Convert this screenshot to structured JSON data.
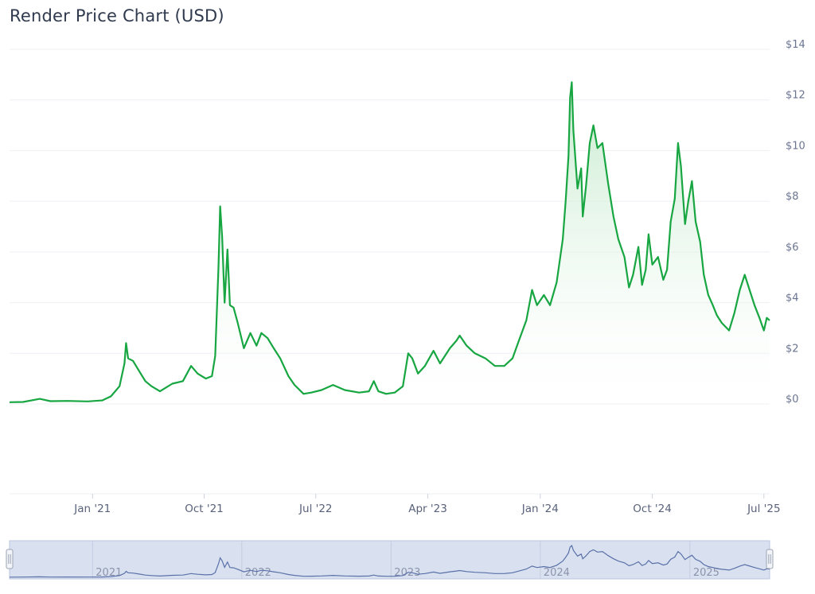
{
  "title": "Render Price Chart (USD)",
  "colors": {
    "line": "#17a641",
    "area_top": "#bfe8c7",
    "grid": "#edeff3",
    "navigator_fill": "#d9e1f1",
    "navigator_line": "#5a71a8",
    "navigator_border": "#b9c4dc"
  },
  "chart_data": {
    "type": "area",
    "title": "Render Price Chart (USD)",
    "xlabel": "",
    "ylabel": "",
    "ylim": [
      0,
      14
    ],
    "xlim": [
      "2020-06-12",
      "2025-07-15"
    ],
    "grid": true,
    "y_ticks": [
      "$0",
      "$2",
      "$4",
      "$6",
      "$8",
      "$10",
      "$12",
      "$14"
    ],
    "y_tick_values": [
      0,
      2,
      4,
      6,
      8,
      10,
      12,
      14
    ],
    "x_ticks": [
      {
        "date": "2021-01-01",
        "label": "Jan '21"
      },
      {
        "date": "2021-10-01",
        "label": "Oct '21"
      },
      {
        "date": "2022-07-01",
        "label": "Jul '22"
      },
      {
        "date": "2023-04-01",
        "label": "Apr '23"
      },
      {
        "date": "2024-01-01",
        "label": "Jan '24"
      },
      {
        "date": "2024-10-01",
        "label": "Oct '24"
      },
      {
        "date": "2025-07-01",
        "label": "Jul '25"
      }
    ],
    "navigator_ticks": [
      {
        "date": "2021-01-01",
        "label": "2021"
      },
      {
        "date": "2022-01-01",
        "label": "2022"
      },
      {
        "date": "2023-01-01",
        "label": "2023"
      },
      {
        "date": "2024-01-01",
        "label": "2024"
      },
      {
        "date": "2025-01-01",
        "label": "2025"
      }
    ],
    "series": [
      {
        "values": [
          [
            "2020-06-12",
            0.07
          ],
          [
            "2020-07-15",
            0.08
          ],
          [
            "2020-08-25",
            0.2
          ],
          [
            "2020-09-20",
            0.11
          ],
          [
            "2020-11-01",
            0.12
          ],
          [
            "2020-12-20",
            0.1
          ],
          [
            "2021-01-25",
            0.14
          ],
          [
            "2021-02-15",
            0.3
          ],
          [
            "2021-03-08",
            0.7
          ],
          [
            "2021-03-20",
            1.6
          ],
          [
            "2021-03-24",
            2.4
          ],
          [
            "2021-03-29",
            1.8
          ],
          [
            "2021-04-10",
            1.7
          ],
          [
            "2021-04-25",
            1.3
          ],
          [
            "2021-05-10",
            0.9
          ],
          [
            "2021-05-25",
            0.7
          ],
          [
            "2021-06-15",
            0.5
          ],
          [
            "2021-07-15",
            0.8
          ],
          [
            "2021-08-10",
            0.9
          ],
          [
            "2021-08-30",
            1.5
          ],
          [
            "2021-09-15",
            1.2
          ],
          [
            "2021-10-05",
            1.0
          ],
          [
            "2021-10-20",
            1.1
          ],
          [
            "2021-10-28",
            1.9
          ],
          [
            "2021-11-05",
            5.4
          ],
          [
            "2021-11-09",
            7.8
          ],
          [
            "2021-11-14",
            6.6
          ],
          [
            "2021-11-20",
            4.0
          ],
          [
            "2021-11-27",
            6.1
          ],
          [
            "2021-12-03",
            3.9
          ],
          [
            "2021-12-12",
            3.8
          ],
          [
            "2021-12-22",
            3.2
          ],
          [
            "2022-01-06",
            2.2
          ],
          [
            "2022-01-22",
            2.8
          ],
          [
            "2022-02-06",
            2.3
          ],
          [
            "2022-02-18",
            2.8
          ],
          [
            "2022-03-05",
            2.6
          ],
          [
            "2022-03-20",
            2.2
          ],
          [
            "2022-04-05",
            1.8
          ],
          [
            "2022-04-25",
            1.1
          ],
          [
            "2022-05-10",
            0.75
          ],
          [
            "2022-06-01",
            0.4
          ],
          [
            "2022-06-20",
            0.45
          ],
          [
            "2022-07-15",
            0.55
          ],
          [
            "2022-08-12",
            0.75
          ],
          [
            "2022-09-10",
            0.55
          ],
          [
            "2022-10-15",
            0.45
          ],
          [
            "2022-11-08",
            0.5
          ],
          [
            "2022-11-20",
            0.9
          ],
          [
            "2022-12-01",
            0.5
          ],
          [
            "2022-12-20",
            0.4
          ],
          [
            "2023-01-10",
            0.45
          ],
          [
            "2023-01-30",
            0.7
          ],
          [
            "2023-02-12",
            2.0
          ],
          [
            "2023-02-22",
            1.8
          ],
          [
            "2023-03-08",
            1.2
          ],
          [
            "2023-03-25",
            1.5
          ],
          [
            "2023-04-15",
            2.1
          ],
          [
            "2023-05-01",
            1.6
          ],
          [
            "2023-05-25",
            2.2
          ],
          [
            "2023-06-10",
            2.5
          ],
          [
            "2023-06-18",
            2.7
          ],
          [
            "2023-07-05",
            2.3
          ],
          [
            "2023-07-25",
            2.0
          ],
          [
            "2023-08-20",
            1.8
          ],
          [
            "2023-09-12",
            1.5
          ],
          [
            "2023-10-05",
            1.5
          ],
          [
            "2023-10-25",
            1.8
          ],
          [
            "2023-11-12",
            2.6
          ],
          [
            "2023-11-28",
            3.3
          ],
          [
            "2023-12-12",
            4.5
          ],
          [
            "2023-12-24",
            3.9
          ],
          [
            "2024-01-10",
            4.3
          ],
          [
            "2024-01-25",
            3.9
          ],
          [
            "2024-02-10",
            4.8
          ],
          [
            "2024-02-25",
            6.5
          ],
          [
            "2024-03-03",
            8.0
          ],
          [
            "2024-03-10",
            9.8
          ],
          [
            "2024-03-14",
            12.1
          ],
          [
            "2024-03-18",
            12.7
          ],
          [
            "2024-03-22",
            10.8
          ],
          [
            "2024-04-01",
            8.5
          ],
          [
            "2024-04-10",
            9.3
          ],
          [
            "2024-04-14",
            7.4
          ],
          [
            "2024-04-22",
            8.6
          ],
          [
            "2024-05-01",
            10.3
          ],
          [
            "2024-05-10",
            11.0
          ],
          [
            "2024-05-20",
            10.1
          ],
          [
            "2024-06-01",
            10.3
          ],
          [
            "2024-06-15",
            8.7
          ],
          [
            "2024-06-28",
            7.4
          ],
          [
            "2024-07-10",
            6.5
          ],
          [
            "2024-07-25",
            5.8
          ],
          [
            "2024-08-05",
            4.6
          ],
          [
            "2024-08-15",
            5.1
          ],
          [
            "2024-08-28",
            6.2
          ],
          [
            "2024-09-06",
            4.7
          ],
          [
            "2024-09-15",
            5.3
          ],
          [
            "2024-09-22",
            6.7
          ],
          [
            "2024-10-01",
            5.5
          ],
          [
            "2024-10-15",
            5.8
          ],
          [
            "2024-10-28",
            4.9
          ],
          [
            "2024-11-06",
            5.3
          ],
          [
            "2024-11-15",
            7.2
          ],
          [
            "2024-11-25",
            8.1
          ],
          [
            "2024-12-03",
            10.3
          ],
          [
            "2024-12-10",
            9.4
          ],
          [
            "2024-12-20",
            7.1
          ],
          [
            "2024-12-28",
            8.0
          ],
          [
            "2025-01-06",
            8.8
          ],
          [
            "2025-01-15",
            7.2
          ],
          [
            "2025-01-26",
            6.4
          ],
          [
            "2025-02-04",
            5.1
          ],
          [
            "2025-02-15",
            4.3
          ],
          [
            "2025-02-26",
            3.9
          ],
          [
            "2025-03-08",
            3.5
          ],
          [
            "2025-03-20",
            3.2
          ],
          [
            "2025-04-07",
            2.9
          ],
          [
            "2025-04-20",
            3.6
          ],
          [
            "2025-05-03",
            4.5
          ],
          [
            "2025-05-15",
            5.1
          ],
          [
            "2025-05-25",
            4.6
          ],
          [
            "2025-06-08",
            3.9
          ],
          [
            "2025-06-20",
            3.4
          ],
          [
            "2025-07-01",
            2.9
          ],
          [
            "2025-07-08",
            3.4
          ],
          [
            "2025-07-15",
            3.3
          ]
        ]
      }
    ]
  }
}
